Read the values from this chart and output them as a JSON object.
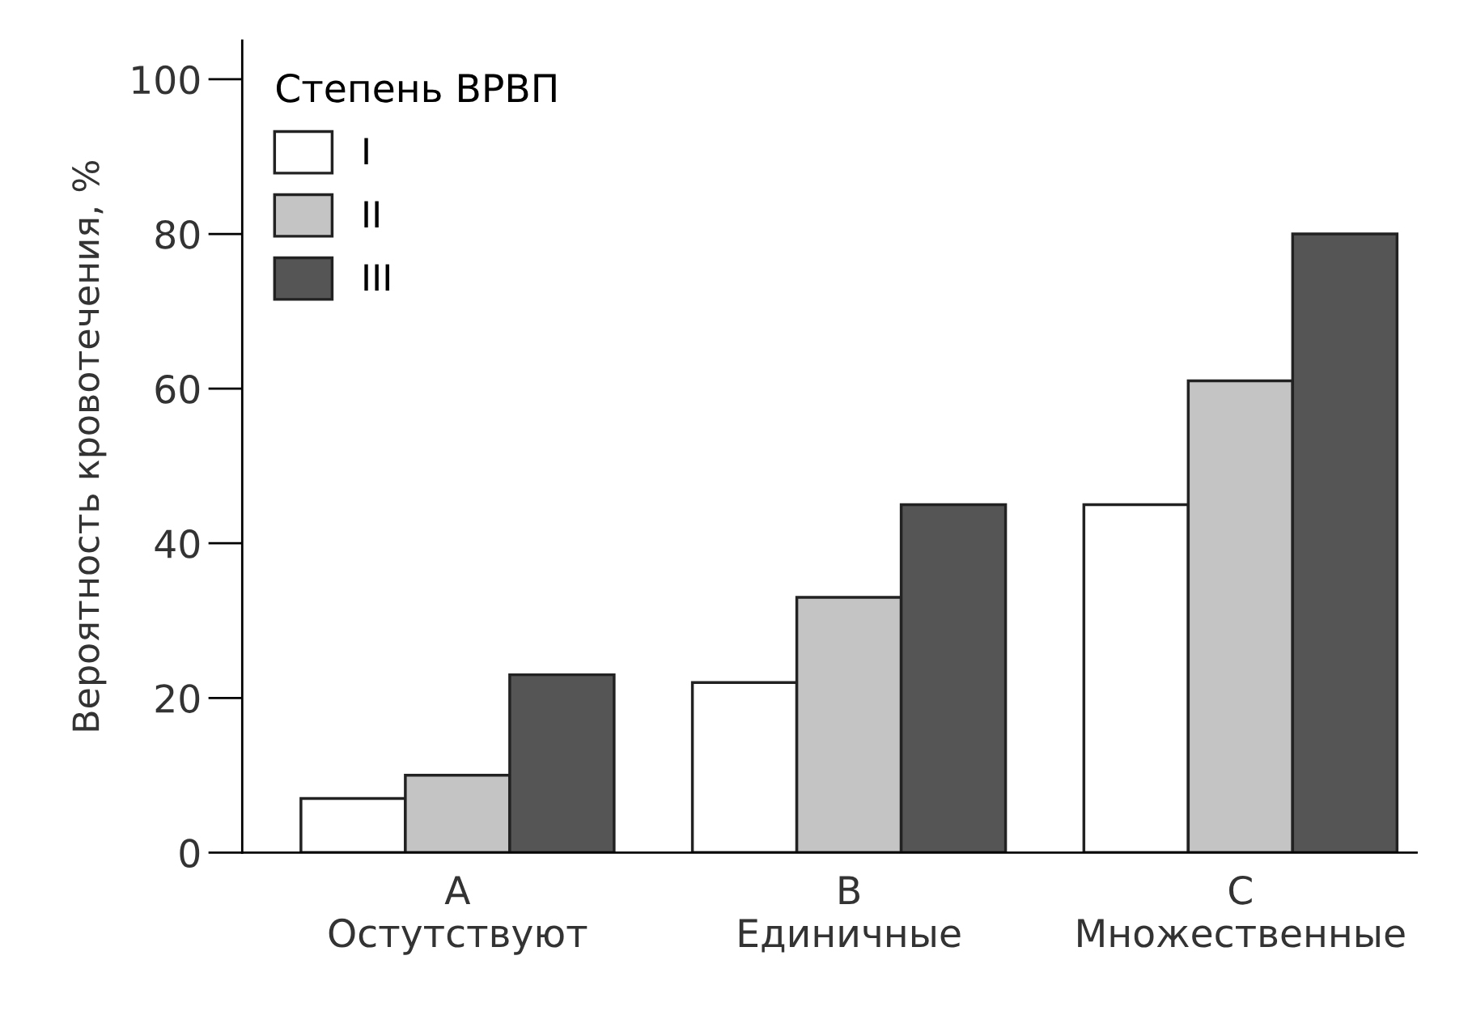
{
  "chart_data": {
    "type": "bar",
    "categories": [
      "A\nОстутствуют",
      "B\nЕдиничные",
      "C\nМножественные"
    ],
    "series": [
      {
        "name": "I",
        "color": "#ffffff",
        "values": [
          7,
          22,
          45
        ]
      },
      {
        "name": "II",
        "color": "#c4c4c4",
        "values": [
          10,
          33,
          61
        ]
      },
      {
        "name": "III",
        "color": "#555555",
        "values": [
          23,
          45,
          80
        ]
      }
    ],
    "ylabel": "Вероятность кровотечения, %",
    "legend_title": "Степень ВРВП",
    "legend": "top left",
    "ylim": [
      0,
      105
    ],
    "yticks": [
      0,
      20,
      40,
      60,
      80,
      100
    ],
    "grid": false
  }
}
